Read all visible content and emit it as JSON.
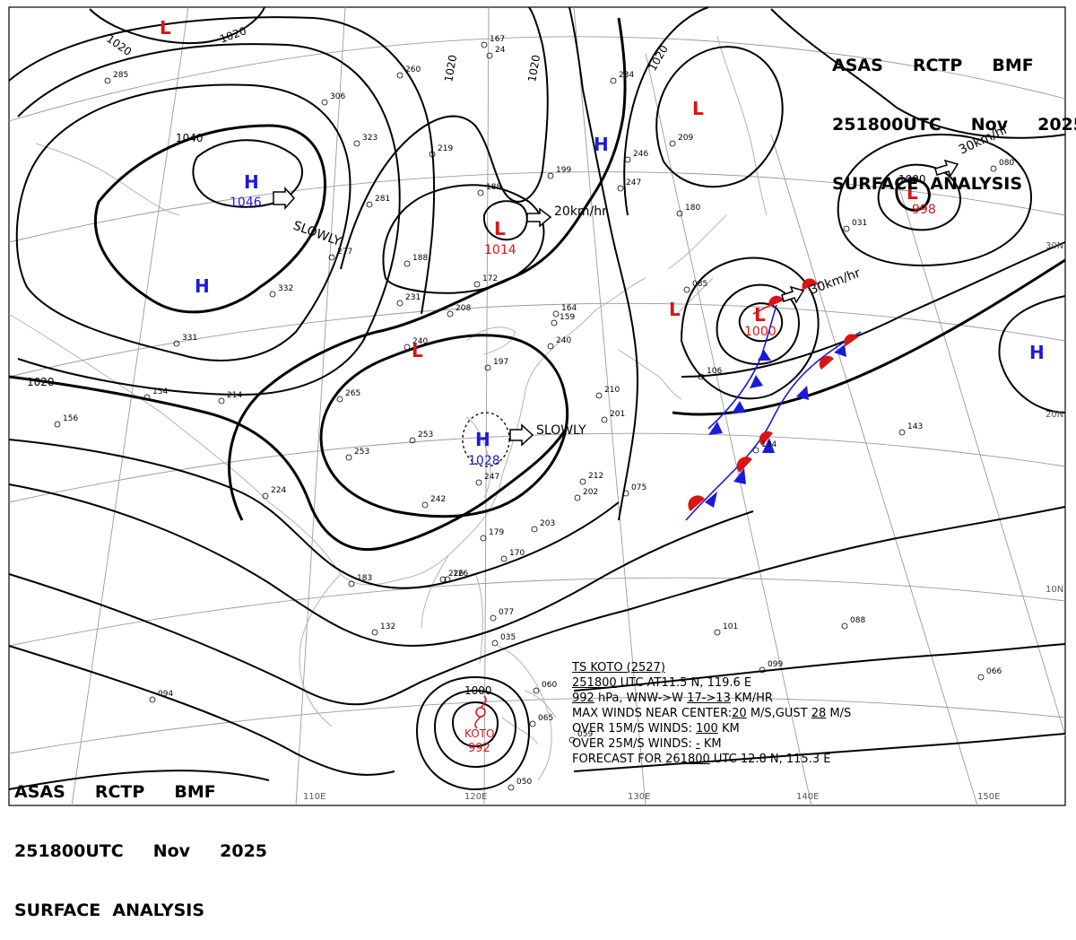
{
  "header": {
    "line1": "ASAS     RCTP     BMF",
    "line2": "251800UTC     Nov     2025",
    "line3": "SURFACE  ANALYSIS"
  },
  "colors": {
    "high": "#1a1adc",
    "low": "#dc1414",
    "cold_front": "#1a1adc",
    "warm_front": "#dc1414",
    "isobar": "#000000",
    "coast": "#b4b4b4",
    "grid": "#9a9a9a"
  },
  "lon_labels": [
    "110E",
    "120E",
    "130E",
    "140E",
    "150E"
  ],
  "lat_labels": [
    "30N",
    "20N",
    "10N"
  ],
  "isobar_labels": [
    "1020",
    "1020",
    "1020",
    "1020",
    "1020",
    "1040",
    "1020",
    "1000",
    "1000"
  ],
  "pressure_systems": [
    {
      "type": "H",
      "value": "1046"
    },
    {
      "type": "H",
      "value": ""
    },
    {
      "type": "H",
      "value": ""
    },
    {
      "type": "H",
      "value": "1028"
    },
    {
      "type": "H",
      "value": ""
    },
    {
      "type": "L",
      "value": ""
    },
    {
      "type": "L",
      "value": "1014"
    },
    {
      "type": "L",
      "value": ""
    },
    {
      "type": "L",
      "value": ""
    },
    {
      "type": "L",
      "value": ""
    },
    {
      "type": "L",
      "value": "1000"
    },
    {
      "type": "L",
      "value": "998"
    }
  ],
  "motion_labels": [
    "SLOWLY",
    "20km/hr",
    "SLOWLY",
    "30km/hr",
    "30km/hr"
  ],
  "storm": {
    "label": "KOTO",
    "pressure": "992"
  },
  "typhoon_info": {
    "line1_name": "TS  KOTO  (2527)",
    "line2_time": "251800",
    "line2_rest": " UTC  AT11.5 N, 119.6 E",
    "line3_pressure": "992",
    "line3_rest": " hPa, WNW->W  ",
    "line3_speed": "17->13",
    "line3_unit": " KM/HR",
    "line4_prefix": "MAX WINDS NEAR CENTER:",
    "line4_wind": "20",
    "line4_mid": " M/S,GUST ",
    "line4_gust": "28",
    "line4_unit": " M/S",
    "line5_prefix": "OVER 15M/S WINDS: ",
    "line5_value": "100",
    "line5_unit": " KM",
    "line6_prefix": "OVER 25M/S WINDS: ",
    "line6_value": "-",
    "line6_unit": " KM",
    "line7_prefix": "FORECAST FOR ",
    "line7_time": "261800",
    "line7_rest": " UTC 12.8 N, 115.3 E"
  },
  "station_labels": [
    "285",
    "306",
    "323",
    "281",
    "260",
    "219",
    "188",
    "167",
    "24",
    "199",
    "234",
    "246",
    "247",
    "209",
    "180",
    "277",
    "332",
    "331",
    "188",
    "172",
    "231",
    "208",
    "240",
    "197",
    "159",
    "240",
    "265",
    "214",
    "134",
    "253",
    "253",
    "224",
    "242",
    "247",
    "226",
    "164",
    "210",
    "201",
    "212",
    "202",
    "203",
    "170",
    "179",
    "183",
    "132",
    "126",
    "077",
    "035",
    "060",
    "065",
    "050",
    "059",
    "094",
    "066",
    "101",
    "099",
    "088",
    "143",
    "031",
    "080",
    "156",
    "134",
    "085",
    "106",
    "075"
  ]
}
